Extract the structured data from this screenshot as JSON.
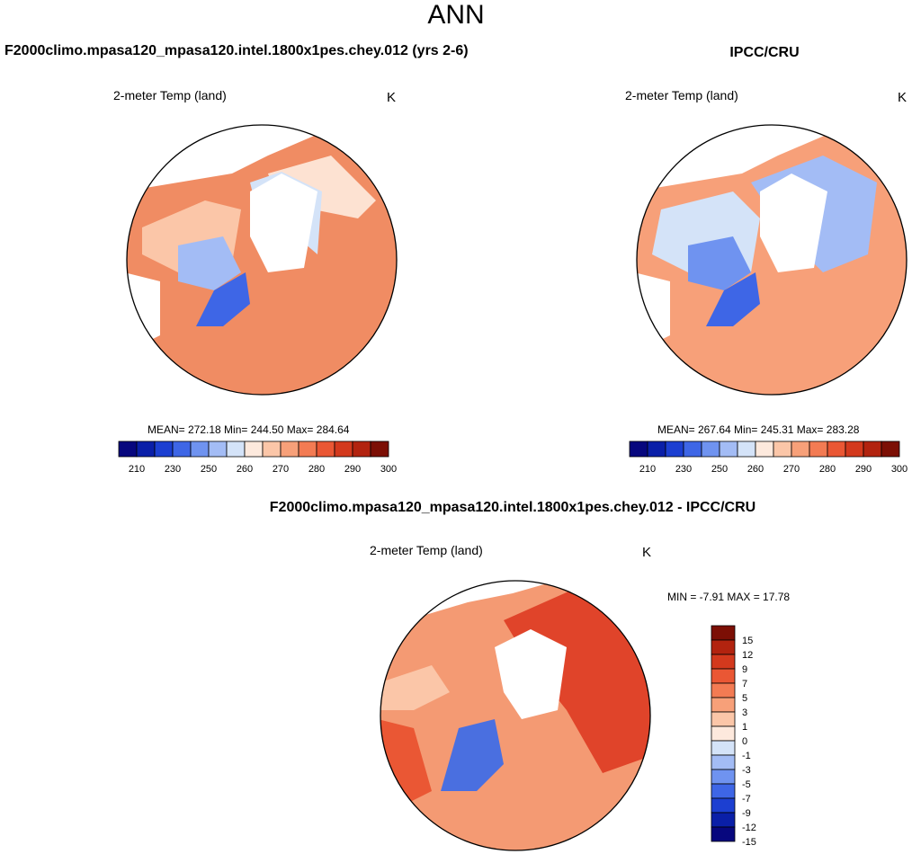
{
  "title": "ANN",
  "panels": {
    "model": {
      "title": "F2000climo.mpasa120_mpasa120.intel.1800x1pes.chey.012 (yrs 2-6)",
      "variable": "2-meter Temp (land)",
      "units": "K",
      "stats": "MEAN= 272.18  Min= 244.50  Max= 284.64"
    },
    "obs": {
      "title": "IPCC/CRU",
      "variable": "2-meter Temp (land)",
      "units": "K",
      "stats": "MEAN= 267.64  Min= 245.31  Max= 283.28"
    },
    "diff": {
      "title": "F2000climo.mpasa120_mpasa120.intel.1800x1pes.chey.012 - IPCC/CRU",
      "variable": "2-meter Temp (land)",
      "units": "K",
      "stats": "MIN =  -7.91 MAX =  17.78"
    }
  },
  "colorbar_abs": {
    "colors": [
      "#07077e",
      "#0a1fa8",
      "#1c3fd1",
      "#3e66e6",
      "#6f93f0",
      "#a3bcf5",
      "#d4e3f8",
      "#fde9dd",
      "#fbc6a8",
      "#f7a079",
      "#f37b53",
      "#ea5734",
      "#d3391d",
      "#b2230f",
      "#7c0f05"
    ],
    "ticks": [
      "210",
      "230",
      "250",
      "260",
      "270",
      "280",
      "290",
      "300"
    ]
  },
  "colorbar_diff": {
    "colors": [
      "#7c0f05",
      "#b2230f",
      "#d3391d",
      "#ea5734",
      "#f37b53",
      "#f7a079",
      "#fbc6a8",
      "#fde9dd",
      "#d4e3f8",
      "#a3bcf5",
      "#6f93f0",
      "#3e66e6",
      "#1c3fd1",
      "#0a1fa8",
      "#07077e"
    ],
    "ticks": [
      "15",
      "12",
      "9",
      "7",
      "5",
      "3",
      "1",
      "0",
      "-1",
      "-3",
      "-5",
      "-7",
      "-9",
      "-12",
      "-15"
    ]
  },
  "map_colors": {
    "outer_warm": "#f08c63",
    "mid_warm": "#f7b594",
    "light_warm": "#fde2d2",
    "cold_light": "#d4e3f8",
    "cold_mid": "#a3bcf5",
    "greenland": "#3e66e6",
    "diff_hot": "#e0442a",
    "diff_warm": "#f49a73",
    "diff_blue": "#4a6fe0"
  }
}
